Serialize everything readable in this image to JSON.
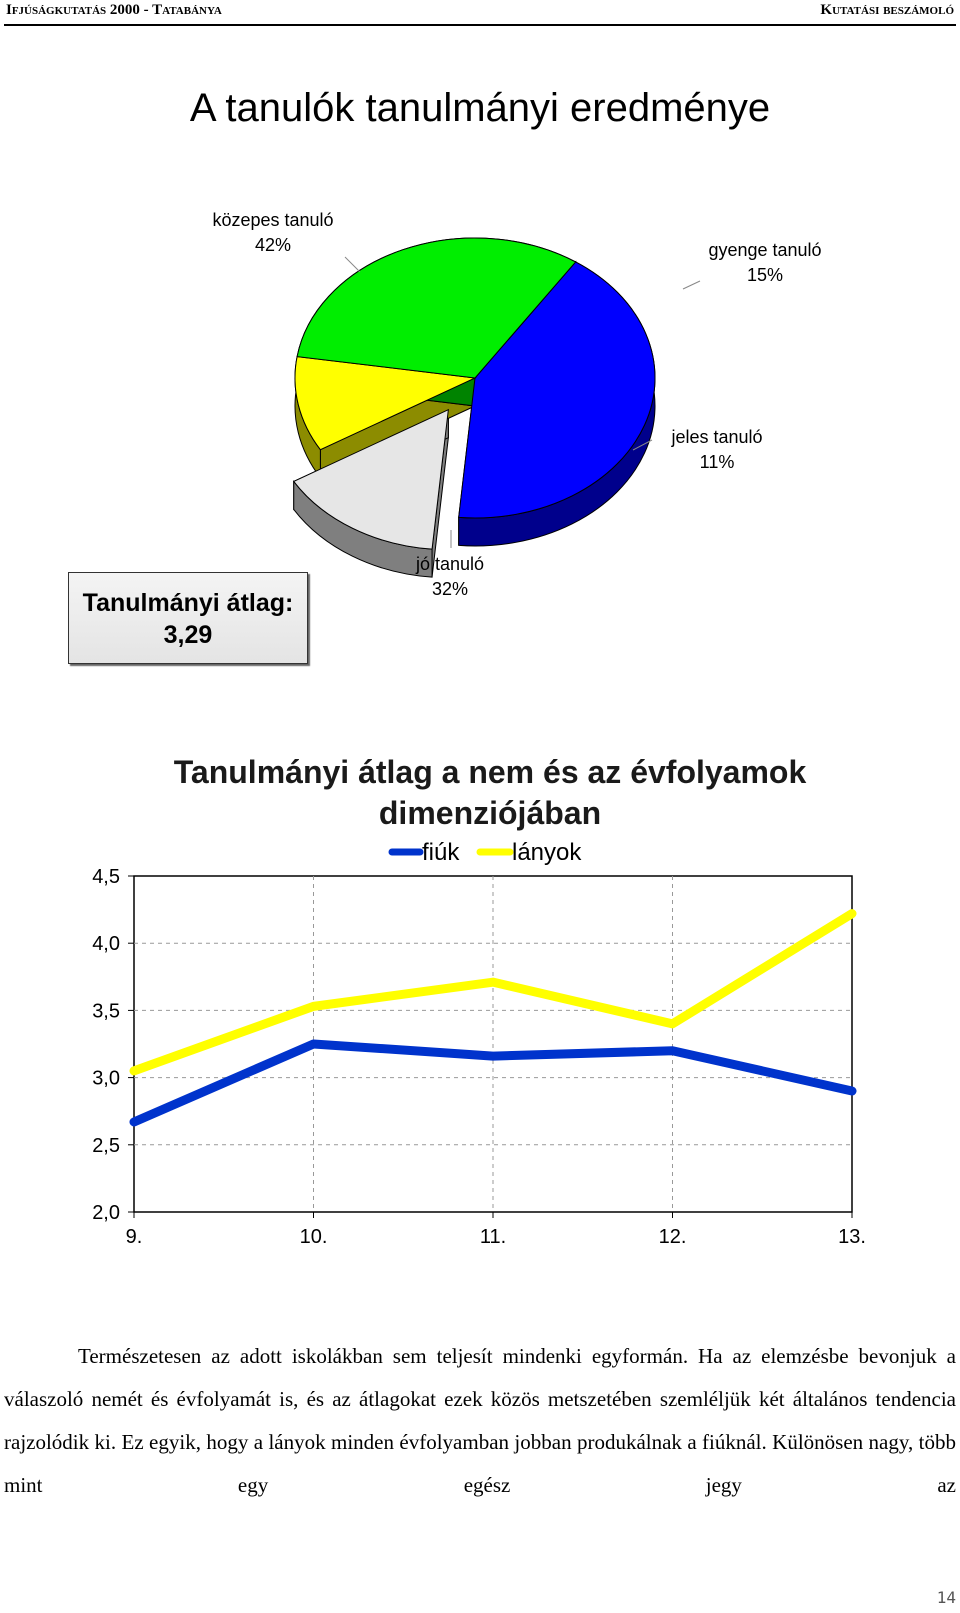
{
  "header": {
    "left": "Ifjúságkutatás 2000 - Tatabánya",
    "right": "Kutatási beszámoló"
  },
  "pie_title": "A tanulók tanulmányi eredménye",
  "pie": {
    "slices": [
      {
        "name": "közepes tanuló",
        "pct": "42%",
        "value": 42,
        "color": "#0000ff"
      },
      {
        "name": "gyenge tanuló",
        "pct": "15%",
        "value": 15,
        "color": "#e6e6e6"
      },
      {
        "name": "jeles tanuló",
        "pct": "11%",
        "value": 11,
        "color": "#ffff00"
      },
      {
        "name": "jó tanuló",
        "pct": "32%",
        "value": 32,
        "color": "#00ee00"
      }
    ]
  },
  "average_box": {
    "label": "Tanulmányi átlag:",
    "value": "3,29"
  },
  "line_title": "Tanulmányi átlag a nem és az évfolyamok dimenziójában",
  "chart_data": [
    {
      "type": "pie",
      "title": "A tanulók tanulmányi eredménye",
      "categories": [
        "közepes tanuló",
        "gyenge tanuló",
        "jeles tanuló",
        "jó tanuló"
      ],
      "values": [
        42,
        15,
        11,
        32
      ]
    },
    {
      "type": "line",
      "title": "Tanulmányi átlag a nem és az évfolyamok dimenziójában",
      "categories": [
        "9.",
        "10.",
        "11.",
        "12.",
        "13."
      ],
      "series": [
        {
          "name": "fiúk",
          "values": [
            2.67,
            3.25,
            3.16,
            3.2,
            2.9
          ],
          "color": "#0033cc"
        },
        {
          "name": "lányok",
          "values": [
            3.05,
            3.53,
            3.71,
            3.4,
            4.22
          ],
          "color": "#ffff00"
        }
      ],
      "yticks": [
        "4,5",
        "4,0",
        "3,5",
        "3,0",
        "2,5",
        "2,0"
      ],
      "ylim": [
        2.0,
        4.5
      ],
      "grid": true,
      "legend": "top"
    }
  ],
  "paragraph": "Természetesen az adott iskolákban sem teljesít mindenki egyformán. Ha az elemzésbe bevonjuk a válaszoló nemét és évfolyamát is, és az átlagokat ezek közös metszetében szemléljük két általános tendencia rajzolódik ki. Ez egyik, hogy a lányok minden évfolyamban jobban produkálnak a fiúknál. Különösen nagy, több mint egy egész jegy az",
  "page_number": "14"
}
